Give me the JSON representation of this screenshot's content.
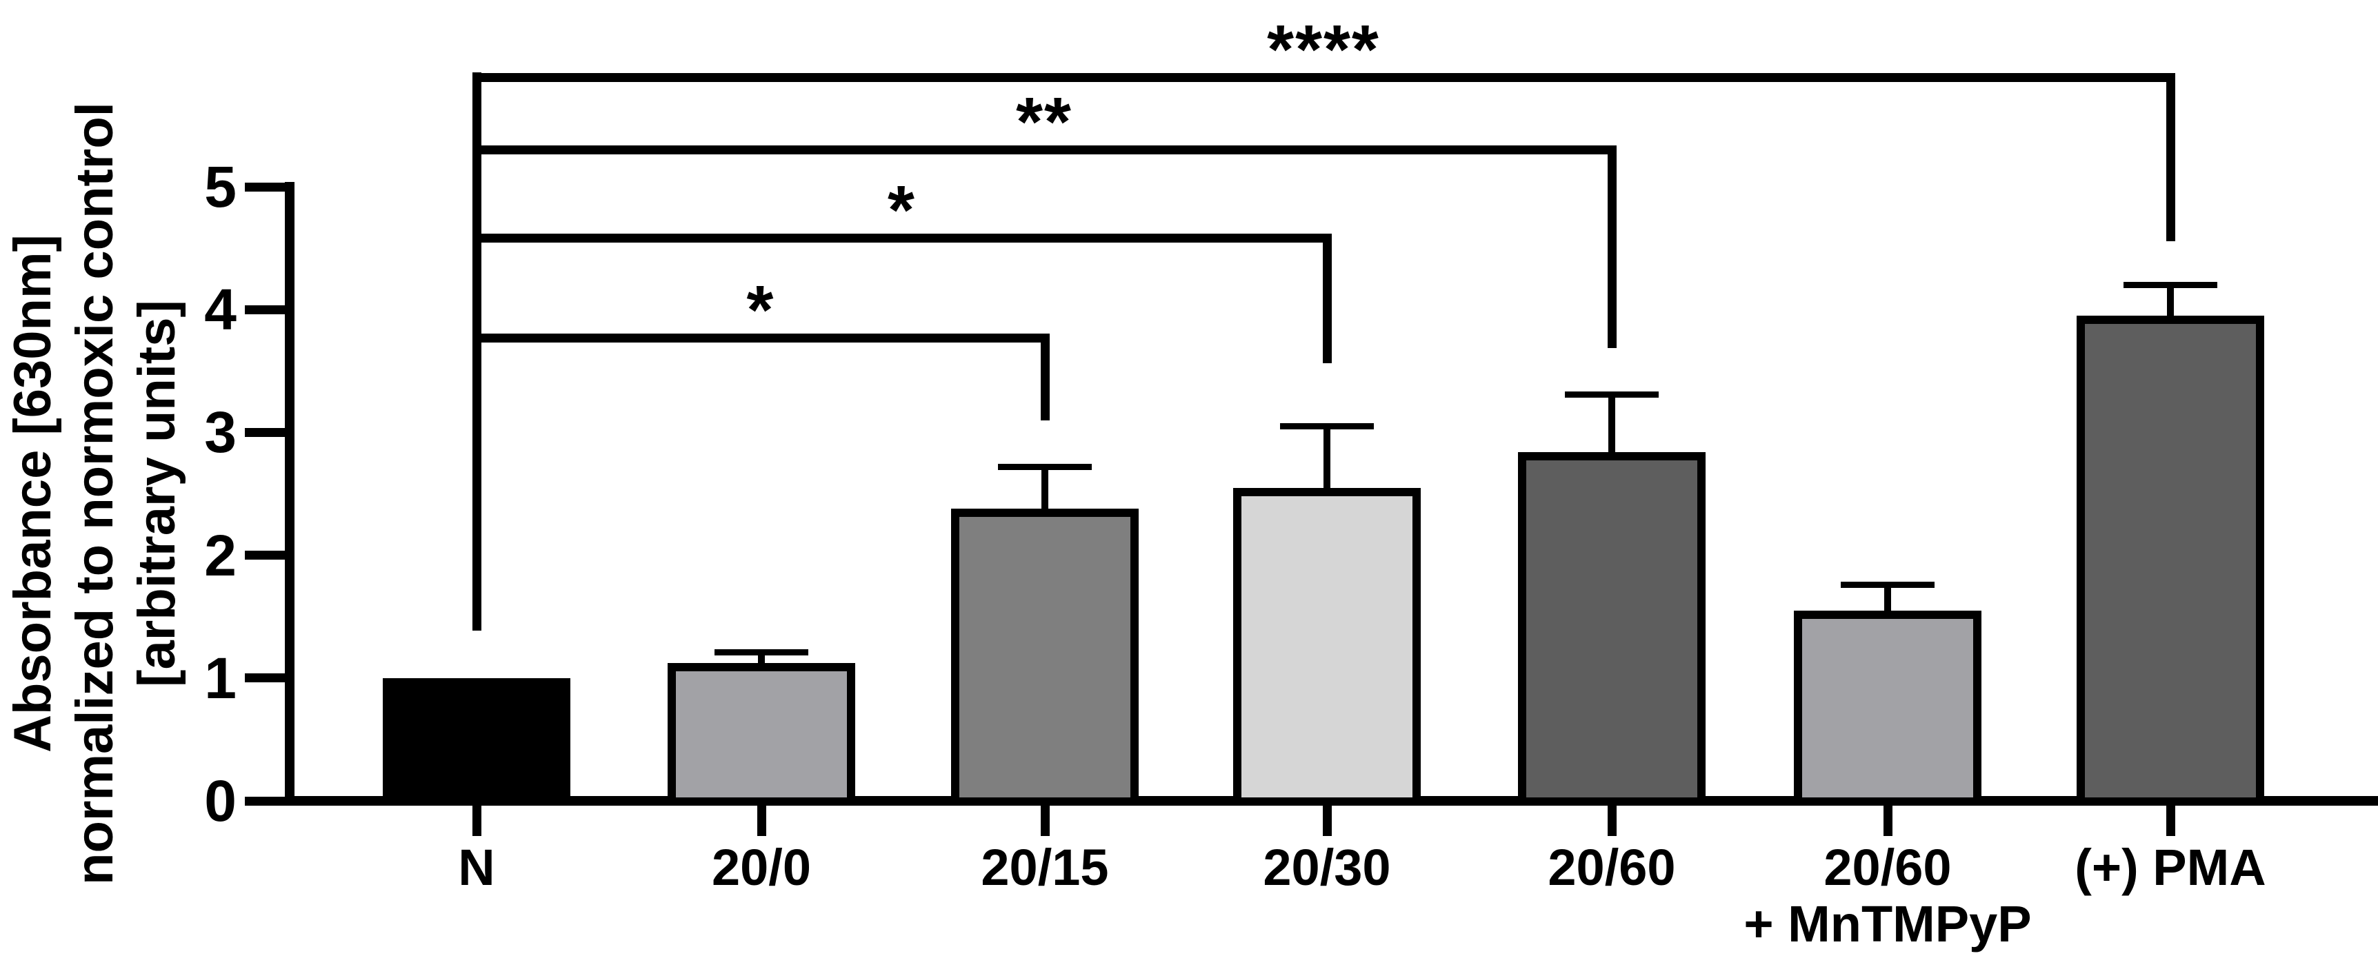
{
  "figure": {
    "background": "#ffffff",
    "foreground": "#000000"
  },
  "chart_data": {
    "type": "bar",
    "title": "",
    "ylabel_lines": [
      "Absorbance [630nm]",
      "normalized to normoxic control",
      "[arbitrary units]"
    ],
    "xlabel": "",
    "categories": [
      "N",
      "20/0",
      "20/15",
      "20/30",
      "20/60",
      "20/60\n+ MnTMPyP",
      "(+) PMA"
    ],
    "values": [
      1.0,
      1.12,
      2.38,
      2.55,
      2.84,
      1.55,
      3.95
    ],
    "error_plus": [
      0,
      0.09,
      0.34,
      0.5,
      0.47,
      0.21,
      0.25
    ],
    "bar_colors": [
      "#000000",
      "#a2a2a6",
      "#7f7f7f",
      "#d6d6d6",
      "#5e5e5e",
      "#a2a2a6",
      "#5e5e5e"
    ],
    "bar_border_color": "#000000",
    "ylim": [
      0,
      5
    ],
    "yticks": [
      0,
      1,
      2,
      3,
      4,
      5
    ],
    "grid": false,
    "legend": "none",
    "error_bar_style": "upper SEM caps",
    "significance": [
      {
        "from": "N",
        "to": "20/15",
        "label": "*"
      },
      {
        "from": "N",
        "to": "20/30",
        "label": "*"
      },
      {
        "from": "N",
        "to": "20/60",
        "label": "**"
      },
      {
        "from": "N",
        "to": "(+) PMA",
        "label": "****"
      }
    ]
  }
}
